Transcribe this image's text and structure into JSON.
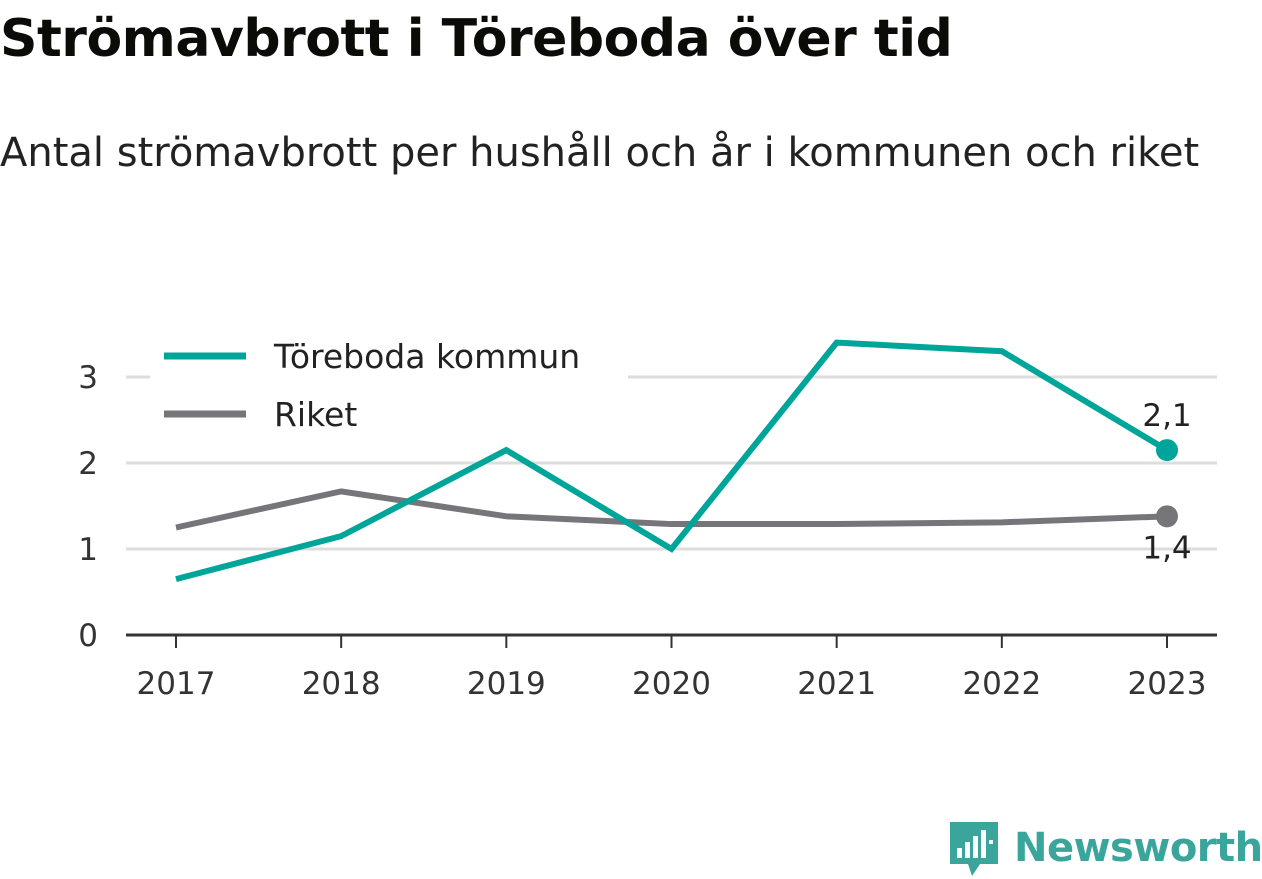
{
  "title": "Strömavbrott i Töreboda över tid",
  "subtitle": "Antal strömavbrott per hushåll och år i kommunen och riket",
  "brand": "Newsworthy",
  "colors": {
    "toreboda": "#00a59a",
    "riket": "#76757a",
    "axis": "#333333",
    "grid": "#dddddd",
    "brand": "#3aa59a"
  },
  "chart_data": {
    "type": "line",
    "x": [
      "2017",
      "2018",
      "2019",
      "2020",
      "2021",
      "2022",
      "2023"
    ],
    "ylim": [
      0,
      3.5
    ],
    "yticks": [
      "0",
      "1",
      "2",
      "3"
    ],
    "grid": true,
    "legend_position": "top-left",
    "series": [
      {
        "name": "Töreboda kommun",
        "values": [
          0.65,
          1.15,
          2.15,
          1.0,
          3.4,
          3.3,
          2.15
        ],
        "end_label": "2,1"
      },
      {
        "name": "Riket",
        "values": [
          1.25,
          1.67,
          1.38,
          1.29,
          1.29,
          1.31,
          1.38
        ],
        "end_label": "1,4"
      }
    ]
  }
}
